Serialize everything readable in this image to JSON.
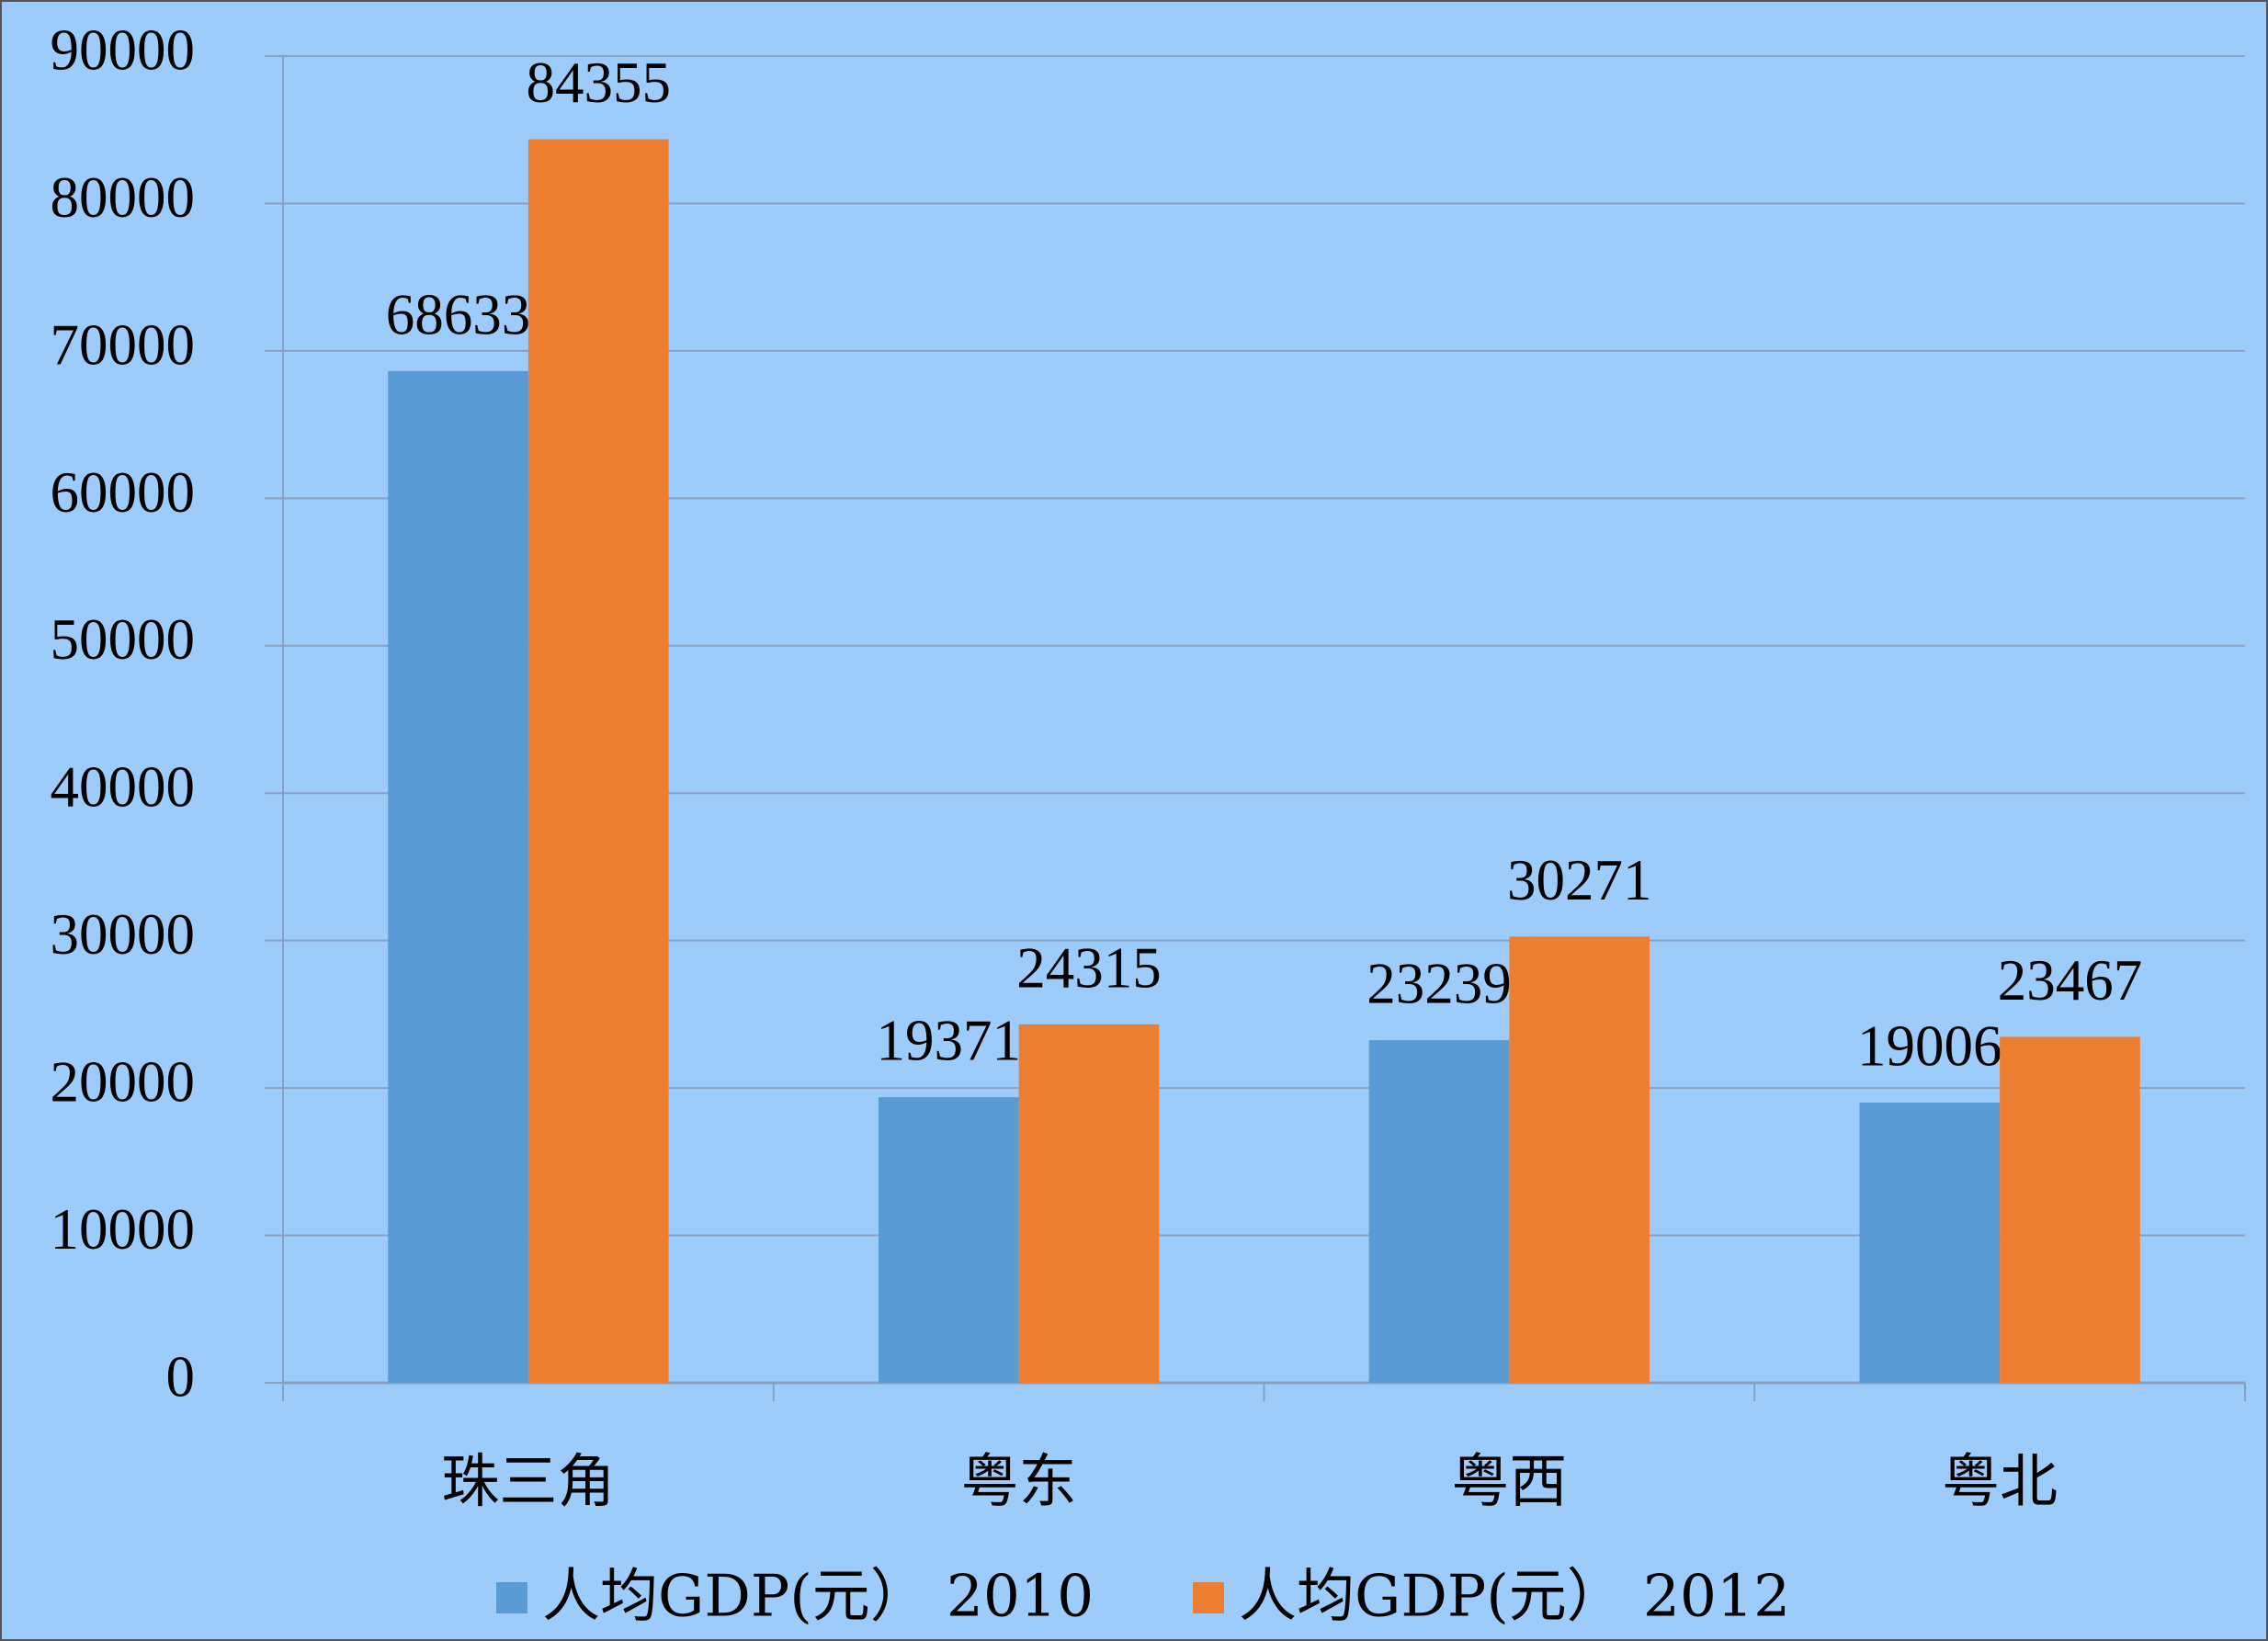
{
  "chart_data": {
    "type": "bar",
    "categories": [
      "珠三角",
      "粤东",
      "粤西",
      "粤北"
    ],
    "series": [
      {
        "name": "人均GDP(元） 2010",
        "color": "#5b9bd5",
        "values": [
          68633,
          19371,
          23239,
          19006
        ]
      },
      {
        "name": "人均GDP(元） 2012",
        "color": "#ed7d31",
        "values": [
          84355,
          24315,
          30271,
          23467
        ]
      }
    ],
    "ylim": [
      0,
      90000
    ],
    "yticks": [
      0,
      10000,
      20000,
      30000,
      40000,
      50000,
      60000,
      70000,
      80000,
      90000
    ],
    "grid": true,
    "legend": "bottom"
  }
}
